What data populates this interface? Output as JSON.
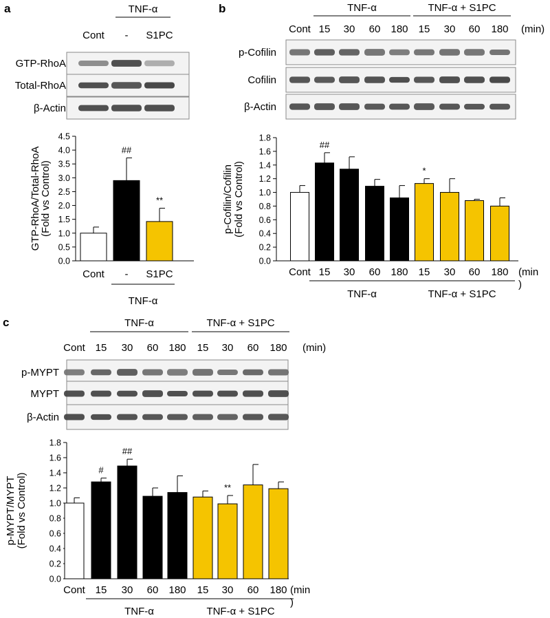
{
  "panels": [
    {
      "id": "a",
      "label": "a",
      "header": {
        "top": [
          {
            "text": "TNF-α",
            "from": 1,
            "to": 2
          }
        ],
        "lanes": [
          "Cont",
          "-",
          "S1PC"
        ],
        "unit": ""
      },
      "blots": [
        {
          "name": "GTP-RhoA",
          "bands": [
            0.45,
            0.85,
            0.25
          ]
        },
        {
          "name": "Total-RhoA",
          "bands": [
            0.85,
            0.8,
            0.9
          ]
        },
        {
          "name": "β-Actin",
          "bands": [
            0.85,
            0.85,
            0.85
          ]
        }
      ],
      "chart_data": {
        "type": "bar",
        "categories": [
          "Cont",
          "-",
          "S1PC"
        ],
        "values": [
          1.0,
          2.9,
          1.42
        ],
        "errors": [
          0.22,
          0.82,
          0.48
        ],
        "colors": [
          "#ffffff",
          "#000000",
          "#f5c400"
        ],
        "significance": [
          "",
          "##",
          "**"
        ],
        "ylabel": [
          "GTP-RhoA/Total-RhoA",
          "(Fold vs Control)"
        ],
        "ylim": [
          0,
          4.5
        ],
        "yticks": [
          "0.0",
          "0.5",
          "1.0",
          "1.5",
          "2.0",
          "2.5",
          "3.0",
          "3.5",
          "4.0",
          "4.5"
        ],
        "groups": [
          {
            "text": "TNF-α",
            "from": 1,
            "to": 2
          }
        ],
        "unit": ""
      }
    },
    {
      "id": "b",
      "label": "b",
      "header": {
        "top": [
          {
            "text": "TNF-α",
            "from": 1,
            "to": 4
          },
          {
            "text": "TNF-α + S1PC",
            "from": 5,
            "to": 8
          }
        ],
        "lanes": [
          "Cont",
          "15",
          "30",
          "60",
          "180",
          "15",
          "30",
          "60",
          "180"
        ],
        "unit": "(min)"
      },
      "blots": [
        {
          "name": "p-Cofilin",
          "bands": [
            0.6,
            0.75,
            0.72,
            0.6,
            0.55,
            0.6,
            0.62,
            0.6,
            0.62
          ]
        },
        {
          "name": "Cofilin",
          "bands": [
            0.8,
            0.78,
            0.8,
            0.82,
            0.85,
            0.8,
            0.85,
            0.85,
            0.88
          ]
        },
        {
          "name": "β-Actin",
          "bands": [
            0.8,
            0.8,
            0.8,
            0.78,
            0.8,
            0.78,
            0.8,
            0.8,
            0.8
          ]
        }
      ],
      "chart_data": {
        "type": "bar",
        "categories": [
          "Cont",
          "15",
          "30",
          "60",
          "180",
          "15",
          "30",
          "60",
          "180"
        ],
        "values": [
          1.0,
          1.43,
          1.34,
          1.09,
          0.92,
          1.13,
          1.0,
          0.88,
          0.8
        ],
        "errors": [
          0.1,
          0.15,
          0.18,
          0.1,
          0.18,
          0.07,
          0.2,
          0.02,
          0.12
        ],
        "colors": [
          "#ffffff",
          "#000000",
          "#000000",
          "#000000",
          "#000000",
          "#f5c400",
          "#f5c400",
          "#f5c400",
          "#f5c400"
        ],
        "significance": [
          "",
          "##",
          "",
          "",
          "",
          "*",
          "",
          "",
          ""
        ],
        "ylabel": [
          "p-Cofilin/Cofilin",
          "(Fold vs Control)"
        ],
        "ylim": [
          0,
          1.8
        ],
        "yticks": [
          "0.0",
          "0.2",
          "0.4",
          "0.6",
          "0.8",
          "1.0",
          "1.2",
          "1.4",
          "1.6",
          "1.8"
        ],
        "groups": [
          {
            "text": "TNF-α",
            "from": 1,
            "to": 4
          },
          {
            "text": "TNF-α + S1PC",
            "from": 5,
            "to": 8
          }
        ],
        "unit": "(min\n)"
      }
    },
    {
      "id": "c",
      "label": "c",
      "header": {
        "top": [
          {
            "text": "TNF-α",
            "from": 1,
            "to": 4
          },
          {
            "text": "TNF-α + S1PC",
            "from": 5,
            "to": 8
          }
        ],
        "lanes": [
          "Cont",
          "15",
          "30",
          "60",
          "180",
          "15",
          "30",
          "60",
          "180"
        ],
        "unit": "(min)"
      },
      "blots": [
        {
          "name": "p-MYPT",
          "bands": [
            0.55,
            0.7,
            0.75,
            0.6,
            0.55,
            0.62,
            0.6,
            0.68,
            0.62
          ]
        },
        {
          "name": "MYPT",
          "bands": [
            0.85,
            0.85,
            0.85,
            0.85,
            0.85,
            0.85,
            0.85,
            0.85,
            0.85
          ]
        },
        {
          "name": "β-Actin",
          "bands": [
            0.85,
            0.85,
            0.82,
            0.8,
            0.78,
            0.75,
            0.72,
            0.8,
            0.8
          ]
        }
      ],
      "chart_data": {
        "type": "bar",
        "categories": [
          "Cont",
          "15",
          "30",
          "60",
          "180",
          "15",
          "30",
          "60",
          "180"
        ],
        "values": [
          1.0,
          1.28,
          1.49,
          1.09,
          1.14,
          1.08,
          0.99,
          1.24,
          1.19
        ],
        "errors": [
          0.07,
          0.05,
          0.09,
          0.11,
          0.22,
          0.08,
          0.11,
          0.27,
          0.09
        ],
        "colors": [
          "#ffffff",
          "#000000",
          "#000000",
          "#000000",
          "#000000",
          "#f5c400",
          "#f5c400",
          "#f5c400",
          "#f5c400"
        ],
        "significance": [
          "",
          "#",
          "##",
          "",
          "",
          "",
          "**",
          "",
          ""
        ],
        "ylabel": [
          "p-MYPT/MYPT",
          "(Fold vs Control)"
        ],
        "ylim": [
          0,
          1.8
        ],
        "yticks": [
          "0.0",
          "0.2",
          "0.4",
          "0.6",
          "0.8",
          "1.0",
          "1.2",
          "1.4",
          "1.6",
          "1.8"
        ],
        "groups": [
          {
            "text": "TNF-α",
            "from": 1,
            "to": 4
          },
          {
            "text": "TNF-α + S1PC",
            "from": 5,
            "to": 8
          }
        ],
        "unit": "(min\n)"
      }
    }
  ]
}
